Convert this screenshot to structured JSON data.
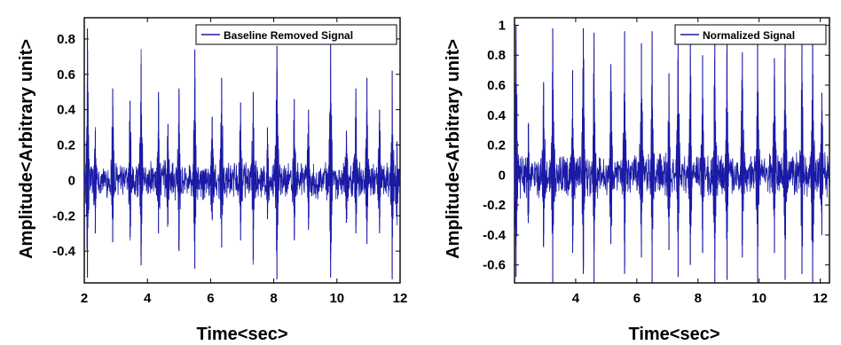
{
  "chart_data": [
    {
      "type": "line",
      "xlabel": "Time<sec>",
      "ylabel": "Amplitude<Arbitrary unit>",
      "xlim": [
        2,
        12
      ],
      "ylim": [
        -0.58,
        0.92
      ],
      "xticks": [
        2,
        4,
        6,
        8,
        10,
        12
      ],
      "yticks": [
        -0.4,
        -0.2,
        0,
        0.2,
        0.4,
        0.6,
        0.8
      ],
      "grid": false,
      "legend_position": "top-right",
      "color": "#1a1aa6",
      "series": [
        {
          "name": "Baseline Removed Signal",
          "peaks": [
            {
              "x": 2.1,
              "max": 0.86,
              "min": -0.55
            },
            {
              "x": 2.35,
              "max": 0.28,
              "min": -0.3
            },
            {
              "x": 2.9,
              "max": 0.52,
              "min": -0.35
            },
            {
              "x": 3.45,
              "max": 0.45,
              "min": -0.32
            },
            {
              "x": 3.8,
              "max": 0.66,
              "min": -0.48
            },
            {
              "x": 4.35,
              "max": 0.5,
              "min": -0.3
            },
            {
              "x": 4.65,
              "max": 0.32,
              "min": -0.25
            },
            {
              "x": 5.0,
              "max": 0.52,
              "min": -0.4
            },
            {
              "x": 5.5,
              "max": 0.74,
              "min": -0.5
            },
            {
              "x": 6.05,
              "max": 0.36,
              "min": -0.22
            },
            {
              "x": 6.35,
              "max": 0.58,
              "min": -0.38
            },
            {
              "x": 6.95,
              "max": 0.44,
              "min": -0.34
            },
            {
              "x": 7.35,
              "max": 0.5,
              "min": -0.45
            },
            {
              "x": 7.8,
              "max": 0.3,
              "min": -0.22
            },
            {
              "x": 8.1,
              "max": 0.76,
              "min": -0.56
            },
            {
              "x": 8.65,
              "max": 0.46,
              "min": -0.34
            },
            {
              "x": 9.1,
              "max": 0.4,
              "min": -0.28
            },
            {
              "x": 9.8,
              "max": 0.77,
              "min": -0.55
            },
            {
              "x": 10.3,
              "max": 0.28,
              "min": -0.24
            },
            {
              "x": 10.6,
              "max": 0.52,
              "min": -0.3
            },
            {
              "x": 10.95,
              "max": 0.58,
              "min": -0.36
            },
            {
              "x": 11.35,
              "max": 0.4,
              "min": -0.3
            },
            {
              "x": 11.75,
              "max": 0.62,
              "min": -0.56
            },
            {
              "x": 11.9,
              "max": 0.22,
              "min": -0.2
            }
          ],
          "noise_amplitude": 0.12
        }
      ]
    },
    {
      "type": "line",
      "xlabel": "Time<sec>",
      "ylabel": "Amplitude<Arbitrary unit>",
      "xlim": [
        2,
        12.3
      ],
      "ylim": [
        -0.72,
        1.05
      ],
      "xticks": [
        4,
        6,
        8,
        10,
        12
      ],
      "yticks": [
        -0.6,
        -0.4,
        -0.2,
        0,
        0.2,
        0.4,
        0.6,
        0.8,
        1
      ],
      "grid": false,
      "legend_position": "top-right",
      "color": "#1a1aa6",
      "series": [
        {
          "name": "Normalized Signal",
          "peaks": [
            {
              "x": 2.05,
              "max": 1.0,
              "min": -0.68
            },
            {
              "x": 2.45,
              "max": 0.34,
              "min": -0.32
            },
            {
              "x": 2.95,
              "max": 0.62,
              "min": -0.48
            },
            {
              "x": 3.25,
              "max": 0.98,
              "min": -0.72
            },
            {
              "x": 3.9,
              "max": 0.7,
              "min": -0.52
            },
            {
              "x": 4.25,
              "max": 0.98,
              "min": -0.66
            },
            {
              "x": 4.6,
              "max": 0.95,
              "min": -0.72
            },
            {
              "x": 5.15,
              "max": 0.74,
              "min": -0.46
            },
            {
              "x": 5.6,
              "max": 0.96,
              "min": -0.66
            },
            {
              "x": 6.15,
              "max": 0.88,
              "min": -0.55
            },
            {
              "x": 6.5,
              "max": 0.96,
              "min": -0.72
            },
            {
              "x": 7.05,
              "max": 0.68,
              "min": -0.5
            },
            {
              "x": 7.35,
              "max": 0.96,
              "min": -0.68
            },
            {
              "x": 7.75,
              "max": 0.9,
              "min": -0.6
            },
            {
              "x": 8.15,
              "max": 0.8,
              "min": -0.52
            },
            {
              "x": 8.55,
              "max": 0.98,
              "min": -0.72
            },
            {
              "x": 8.95,
              "max": 0.93,
              "min": -0.7
            },
            {
              "x": 9.45,
              "max": 0.82,
              "min": -0.55
            },
            {
              "x": 9.95,
              "max": 0.97,
              "min": -0.72
            },
            {
              "x": 10.5,
              "max": 0.78,
              "min": -0.52
            },
            {
              "x": 10.85,
              "max": 0.98,
              "min": -0.7
            },
            {
              "x": 11.4,
              "max": 0.92,
              "min": -0.66
            },
            {
              "x": 11.75,
              "max": 0.97,
              "min": -0.72
            },
            {
              "x": 12.05,
              "max": 0.55,
              "min": -0.4
            }
          ],
          "noise_amplitude": 0.16
        }
      ]
    }
  ]
}
